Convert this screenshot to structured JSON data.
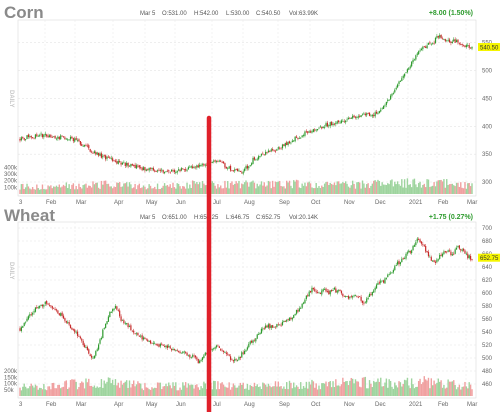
{
  "chart_data": [
    {
      "type": "candlestick",
      "title": "Corn",
      "header": {
        "date": "Mar 5",
        "open": "O:531.00",
        "high": "H:542.00",
        "low": "L:530.00",
        "close": "C:540.50",
        "volume": "Vol:63.99K",
        "change": "+8.00 (1.50%)"
      },
      "interval": "DAILY",
      "last_price": "540.50",
      "ylim": [
        300,
        580
      ],
      "yticks": [
        "300",
        "350",
        "400",
        "450",
        "500",
        "550"
      ],
      "volume_ticks": [
        "100k",
        "200k",
        "300k",
        "400k"
      ],
      "x_tick_labels": [
        "3",
        "Feb",
        "Mar",
        "Apr",
        "May",
        "Jun",
        "Jul",
        "Aug",
        "Sep",
        "Oct",
        "Nov",
        "Dec",
        "2021",
        "Feb",
        "Mar"
      ],
      "price_path": [
        [
          0,
          378
        ],
        [
          8,
          382
        ],
        [
          15,
          384
        ],
        [
          22,
          382
        ],
        [
          30,
          380
        ],
        [
          38,
          377
        ],
        [
          44,
          368
        ],
        [
          50,
          358
        ],
        [
          56,
          349
        ],
        [
          62,
          342
        ],
        [
          68,
          337
        ],
        [
          74,
          333
        ],
        [
          80,
          329
        ],
        [
          86,
          325
        ],
        [
          92,
          323
        ],
        [
          98,
          321
        ],
        [
          104,
          319
        ],
        [
          110,
          320
        ],
        [
          116,
          323
        ],
        [
          121,
          325
        ],
        [
          127,
          327
        ],
        [
          132,
          329
        ],
        [
          136,
          338
        ],
        [
          139,
          340
        ],
        [
          143,
          334
        ],
        [
          148,
          326
        ],
        [
          153,
          320
        ],
        [
          158,
          318
        ],
        [
          162,
          327
        ],
        [
          166,
          340
        ],
        [
          172,
          350
        ],
        [
          178,
          354
        ],
        [
          184,
          360
        ],
        [
          190,
          368
        ],
        [
          196,
          378
        ],
        [
          202,
          386
        ],
        [
          208,
          393
        ],
        [
          214,
          398
        ],
        [
          220,
          404
        ],
        [
          226,
          407
        ],
        [
          232,
          412
        ],
        [
          238,
          418
        ],
        [
          242,
          421
        ],
        [
          246,
          420
        ],
        [
          252,
          420
        ],
        [
          258,
          430
        ],
        [
          262,
          444
        ],
        [
          266,
          462
        ],
        [
          270,
          480
        ],
        [
          274,
          494
        ],
        [
          278,
          510
        ],
        [
          282,
          525
        ],
        [
          286,
          537
        ],
        [
          290,
          545
        ],
        [
          294,
          550
        ],
        [
          298,
          562
        ],
        [
          302,
          555
        ],
        [
          306,
          552
        ],
        [
          310,
          553
        ],
        [
          314,
          547
        ],
        [
          318,
          545
        ],
        [
          322,
          541
        ]
      ],
      "volume_path": [
        [
          0,
          110
        ],
        [
          15,
          115
        ],
        [
          30,
          120
        ],
        [
          45,
          125
        ],
        [
          60,
          140
        ],
        [
          75,
          130
        ],
        [
          90,
          115
        ],
        [
          105,
          120
        ],
        [
          120,
          140
        ],
        [
          135,
          150
        ],
        [
          150,
          135
        ],
        [
          165,
          145
        ],
        [
          180,
          140
        ],
        [
          195,
          150
        ],
        [
          210,
          135
        ],
        [
          225,
          135
        ],
        [
          240,
          140
        ],
        [
          255,
          150
        ],
        [
          270,
          165
        ],
        [
          285,
          170
        ],
        [
          300,
          170
        ],
        [
          322,
          120
        ]
      ]
    },
    {
      "type": "candlestick",
      "title": "Wheat",
      "header": {
        "date": "Mar 5",
        "open": "O:651.00",
        "high": "H:656.25",
        "low": "L:646.75",
        "close": "C:652.75",
        "volume": "Vol:20.14K",
        "change": "+1.75 (0.27%)"
      },
      "interval": "DAILY",
      "last_price": "652.75",
      "ylim": [
        460,
        700
      ],
      "yticks": [
        "460",
        "480",
        "500",
        "520",
        "540",
        "560",
        "580",
        "600",
        "620",
        "640",
        "660",
        "680",
        "700"
      ],
      "volume_ticks": [
        "50k",
        "100k",
        "150k",
        "200k"
      ],
      "x_tick_labels": [
        "3",
        "Feb",
        "Mar",
        "Apr",
        "May",
        "Jun",
        "Jul",
        "Aug",
        "Sep",
        "Oct",
        "Nov",
        "Dec",
        "2021",
        "Feb",
        "Mar"
      ],
      "price_path": [
        [
          0,
          545
        ],
        [
          6,
          565
        ],
        [
          12,
          578
        ],
        [
          18,
          585
        ],
        [
          24,
          575
        ],
        [
          30,
          565
        ],
        [
          36,
          548
        ],
        [
          42,
          532
        ],
        [
          48,
          512
        ],
        [
          52,
          500
        ],
        [
          56,
          520
        ],
        [
          60,
          548
        ],
        [
          64,
          570
        ],
        [
          68,
          580
        ],
        [
          72,
          560
        ],
        [
          78,
          548
        ],
        [
          84,
          535
        ],
        [
          90,
          528
        ],
        [
          96,
          522
        ],
        [
          102,
          518
        ],
        [
          108,
          515
        ],
        [
          114,
          510
        ],
        [
          120,
          505
        ],
        [
          124,
          500
        ],
        [
          128,
          493
        ],
        [
          132,
          505
        ],
        [
          136,
          515
        ],
        [
          140,
          518
        ],
        [
          144,
          513
        ],
        [
          148,
          505
        ],
        [
          152,
          494
        ],
        [
          156,
          500
        ],
        [
          160,
          512
        ],
        [
          164,
          525
        ],
        [
          168,
          530
        ],
        [
          172,
          545
        ],
        [
          176,
          550
        ],
        [
          180,
          548
        ],
        [
          184,
          552
        ],
        [
          188,
          555
        ],
        [
          192,
          560
        ],
        [
          196,
          570
        ],
        [
          200,
          578
        ],
        [
          204,
          595
        ],
        [
          208,
          605
        ],
        [
          212,
          598
        ],
        [
          216,
          605
        ],
        [
          220,
          600
        ],
        [
          224,
          605
        ],
        [
          228,
          600
        ],
        [
          232,
          595
        ],
        [
          236,
          592
        ],
        [
          240,
          598
        ],
        [
          244,
          585
        ],
        [
          248,
          592
        ],
        [
          252,
          605
        ],
        [
          256,
          615
        ],
        [
          260,
          620
        ],
        [
          264,
          630
        ],
        [
          268,
          645
        ],
        [
          272,
          650
        ],
        [
          276,
          660
        ],
        [
          280,
          670
        ],
        [
          284,
          685
        ],
        [
          288,
          670
        ],
        [
          292,
          655
        ],
        [
          296,
          645
        ],
        [
          300,
          660
        ],
        [
          304,
          665
        ],
        [
          308,
          660
        ],
        [
          312,
          672
        ],
        [
          316,
          662
        ],
        [
          320,
          655
        ],
        [
          322,
          652
        ]
      ],
      "volume_path": [
        [
          0,
          70
        ],
        [
          15,
          75
        ],
        [
          30,
          90
        ],
        [
          45,
          100
        ],
        [
          60,
          110
        ],
        [
          75,
          90
        ],
        [
          90,
          80
        ],
        [
          105,
          75
        ],
        [
          120,
          80
        ],
        [
          135,
          90
        ],
        [
          150,
          80
        ],
        [
          165,
          75
        ],
        [
          180,
          80
        ],
        [
          195,
          95
        ],
        [
          210,
          90
        ],
        [
          225,
          100
        ],
        [
          240,
          110
        ],
        [
          255,
          105
        ],
        [
          270,
          100
        ],
        [
          285,
          115
        ],
        [
          300,
          105
        ],
        [
          322,
          80
        ]
      ]
    }
  ],
  "colors": {
    "up": "#2d9a2d",
    "down": "#c62828",
    "vol_up": "#9ed49e",
    "vol_down": "#f0a0a0",
    "marker": "#e0202a",
    "last_price_bg": "#f5f500"
  }
}
